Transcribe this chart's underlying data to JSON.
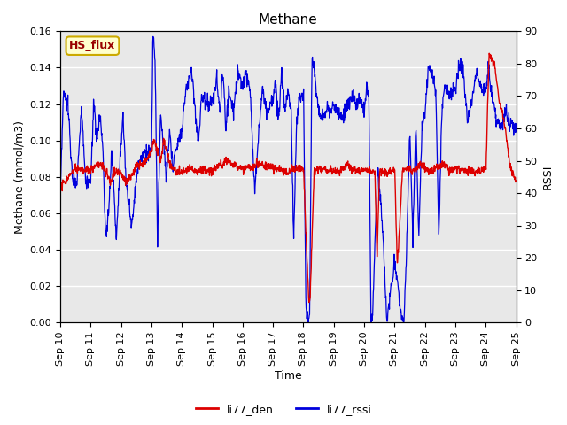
{
  "title": "Methane",
  "xlabel": "Time",
  "ylabel_left": "Methane (mmol/m3)",
  "ylabel_right": "RSSI",
  "ylim_left": [
    0.0,
    0.16
  ],
  "ylim_right": [
    0,
    90
  ],
  "yticks_left": [
    0.0,
    0.02,
    0.04,
    0.06,
    0.08,
    0.1,
    0.12,
    0.14,
    0.16
  ],
  "yticks_right": [
    0,
    10,
    20,
    30,
    40,
    50,
    60,
    70,
    80,
    90
  ],
  "xtick_labels": [
    "Sep 10",
    "Sep 11",
    "Sep 12",
    "Sep 13",
    "Sep 14",
    "Sep 15",
    "Sep 16",
    "Sep 17",
    "Sep 18",
    "Sep 19",
    "Sep 20",
    "Sep 21",
    "Sep 22",
    "Sep 23",
    "Sep 24",
    "Sep 25"
  ],
  "legend_label_red": "li77_den",
  "legend_label_blue": "li77_rssi",
  "hs_flux_label": "HS_flux",
  "hs_flux_box_color": "#ffffcc",
  "hs_flux_border_color": "#ccaa00",
  "hs_flux_text_color": "#990000",
  "line_red_color": "#dd0000",
  "line_blue_color": "#0000dd",
  "bg_color": "#e8e8e8",
  "grid_color": "#ffffff",
  "title_fontsize": 11,
  "axis_fontsize": 9,
  "tick_fontsize": 8,
  "legend_fontsize": 9,
  "n_days": 15,
  "pts_per_day": 96
}
